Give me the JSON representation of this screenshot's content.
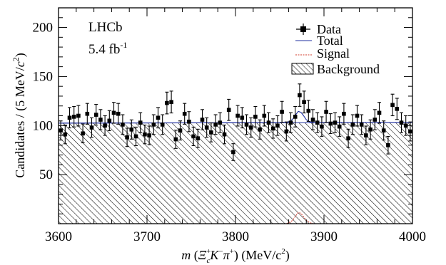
{
  "chart_data": {
    "type": "scatter",
    "experiment": "LHCb",
    "luminosity_value": "5.4 fb",
    "luminosity_exponent": "-1",
    "xlabel": {
      "prefix": "m",
      "particle_1": "Ξ",
      "particle_1_sup": "+",
      "particle_1_sub": "c",
      "particle_2": "K",
      "particle_2_sup": "−",
      "particle_3": "π",
      "particle_3_sup": "+",
      "units": "(MeV/c",
      "units_sup": "2",
      "units_close": ")"
    },
    "ylabel": {
      "main": "Candidates / (5 MeV/",
      "c": "c",
      "sup": "2",
      "close": ")"
    },
    "xlim": [
      3600,
      4000
    ],
    "ylim": [
      0,
      220
    ],
    "x_ticks": [
      3600,
      3700,
      3800,
      3900,
      4000
    ],
    "y_ticks": [
      50,
      100,
      150,
      200
    ],
    "legend": {
      "position": "top-right",
      "entries": [
        "Data",
        "Total",
        "Signal",
        "Background"
      ]
    },
    "colors": {
      "data": "#000000",
      "total": "#1f2f9f",
      "signal": "#d23a2a",
      "background_hatch": "#000000"
    },
    "data_series": {
      "name": "Data",
      "x": [
        3602.5,
        3607.5,
        3612.5,
        3617.5,
        3622.5,
        3627.5,
        3632.5,
        3637.5,
        3642.5,
        3647.5,
        3652.5,
        3657.5,
        3662.5,
        3667.5,
        3672.5,
        3677.5,
        3682.5,
        3687.5,
        3692.5,
        3697.5,
        3702.5,
        3707.5,
        3712.5,
        3717.5,
        3722.5,
        3727.5,
        3732.5,
        3737.5,
        3742.5,
        3747.5,
        3752.5,
        3757.5,
        3762.5,
        3767.5,
        3772.5,
        3777.5,
        3782.5,
        3787.5,
        3792.5,
        3797.5,
        3802.5,
        3807.5,
        3812.5,
        3817.5,
        3822.5,
        3827.5,
        3832.5,
        3837.5,
        3842.5,
        3847.5,
        3852.5,
        3857.5,
        3862.5,
        3867.5,
        3872.5,
        3877.5,
        3882.5,
        3887.5,
        3892.5,
        3897.5,
        3902.5,
        3907.5,
        3912.5,
        3917.5,
        3922.5,
        3927.5,
        3932.5,
        3937.5,
        3942.5,
        3947.5,
        3952.5,
        3957.5,
        3962.5,
        3967.5,
        3972.5,
        3977.5,
        3982.5,
        3987.5,
        3992.5,
        3997.5
      ],
      "y": [
        95,
        91,
        108,
        109,
        110,
        92,
        112,
        98,
        111,
        106,
        100,
        105,
        113,
        112,
        101,
        88,
        96,
        89,
        103,
        91,
        90,
        101,
        108,
        101,
        123,
        124,
        86,
        95,
        112,
        104,
        89,
        87,
        106,
        98,
        93,
        101,
        103,
        91,
        116,
        73,
        110,
        108,
        101,
        98,
        109,
        96,
        110,
        103,
        97,
        100,
        114,
        94,
        103,
        109,
        131,
        124,
        115,
        106,
        103,
        99,
        114,
        102,
        103,
        99,
        112,
        87,
        101,
        110,
        101,
        90,
        96,
        106,
        113,
        95,
        80,
        121,
        117,
        103,
        100,
        94
      ]
    },
    "total_fit": {
      "name": "Total",
      "x": [
        3600,
        3850,
        3858,
        3862,
        3865,
        3868,
        3871,
        3874,
        3877,
        3880,
        3884,
        3890,
        4000
      ],
      "y": [
        102.5,
        103.0,
        103.4,
        104.5,
        107.0,
        111.0,
        114.5,
        113.5,
        110.0,
        106.0,
        103.8,
        103.2,
        103.2
      ]
    },
    "signal_fit": {
      "name": "Signal",
      "x": [
        3858,
        3862,
        3865,
        3868,
        3871,
        3874,
        3877,
        3880,
        3884,
        3888
      ],
      "y": [
        0.3,
        1.5,
        4.0,
        8.0,
        11.5,
        10.5,
        7.0,
        3.5,
        1.0,
        0.2
      ]
    },
    "background_fit": {
      "name": "Background",
      "x": [
        3600,
        4000
      ],
      "y": [
        102.5,
        103.2
      ]
    }
  }
}
